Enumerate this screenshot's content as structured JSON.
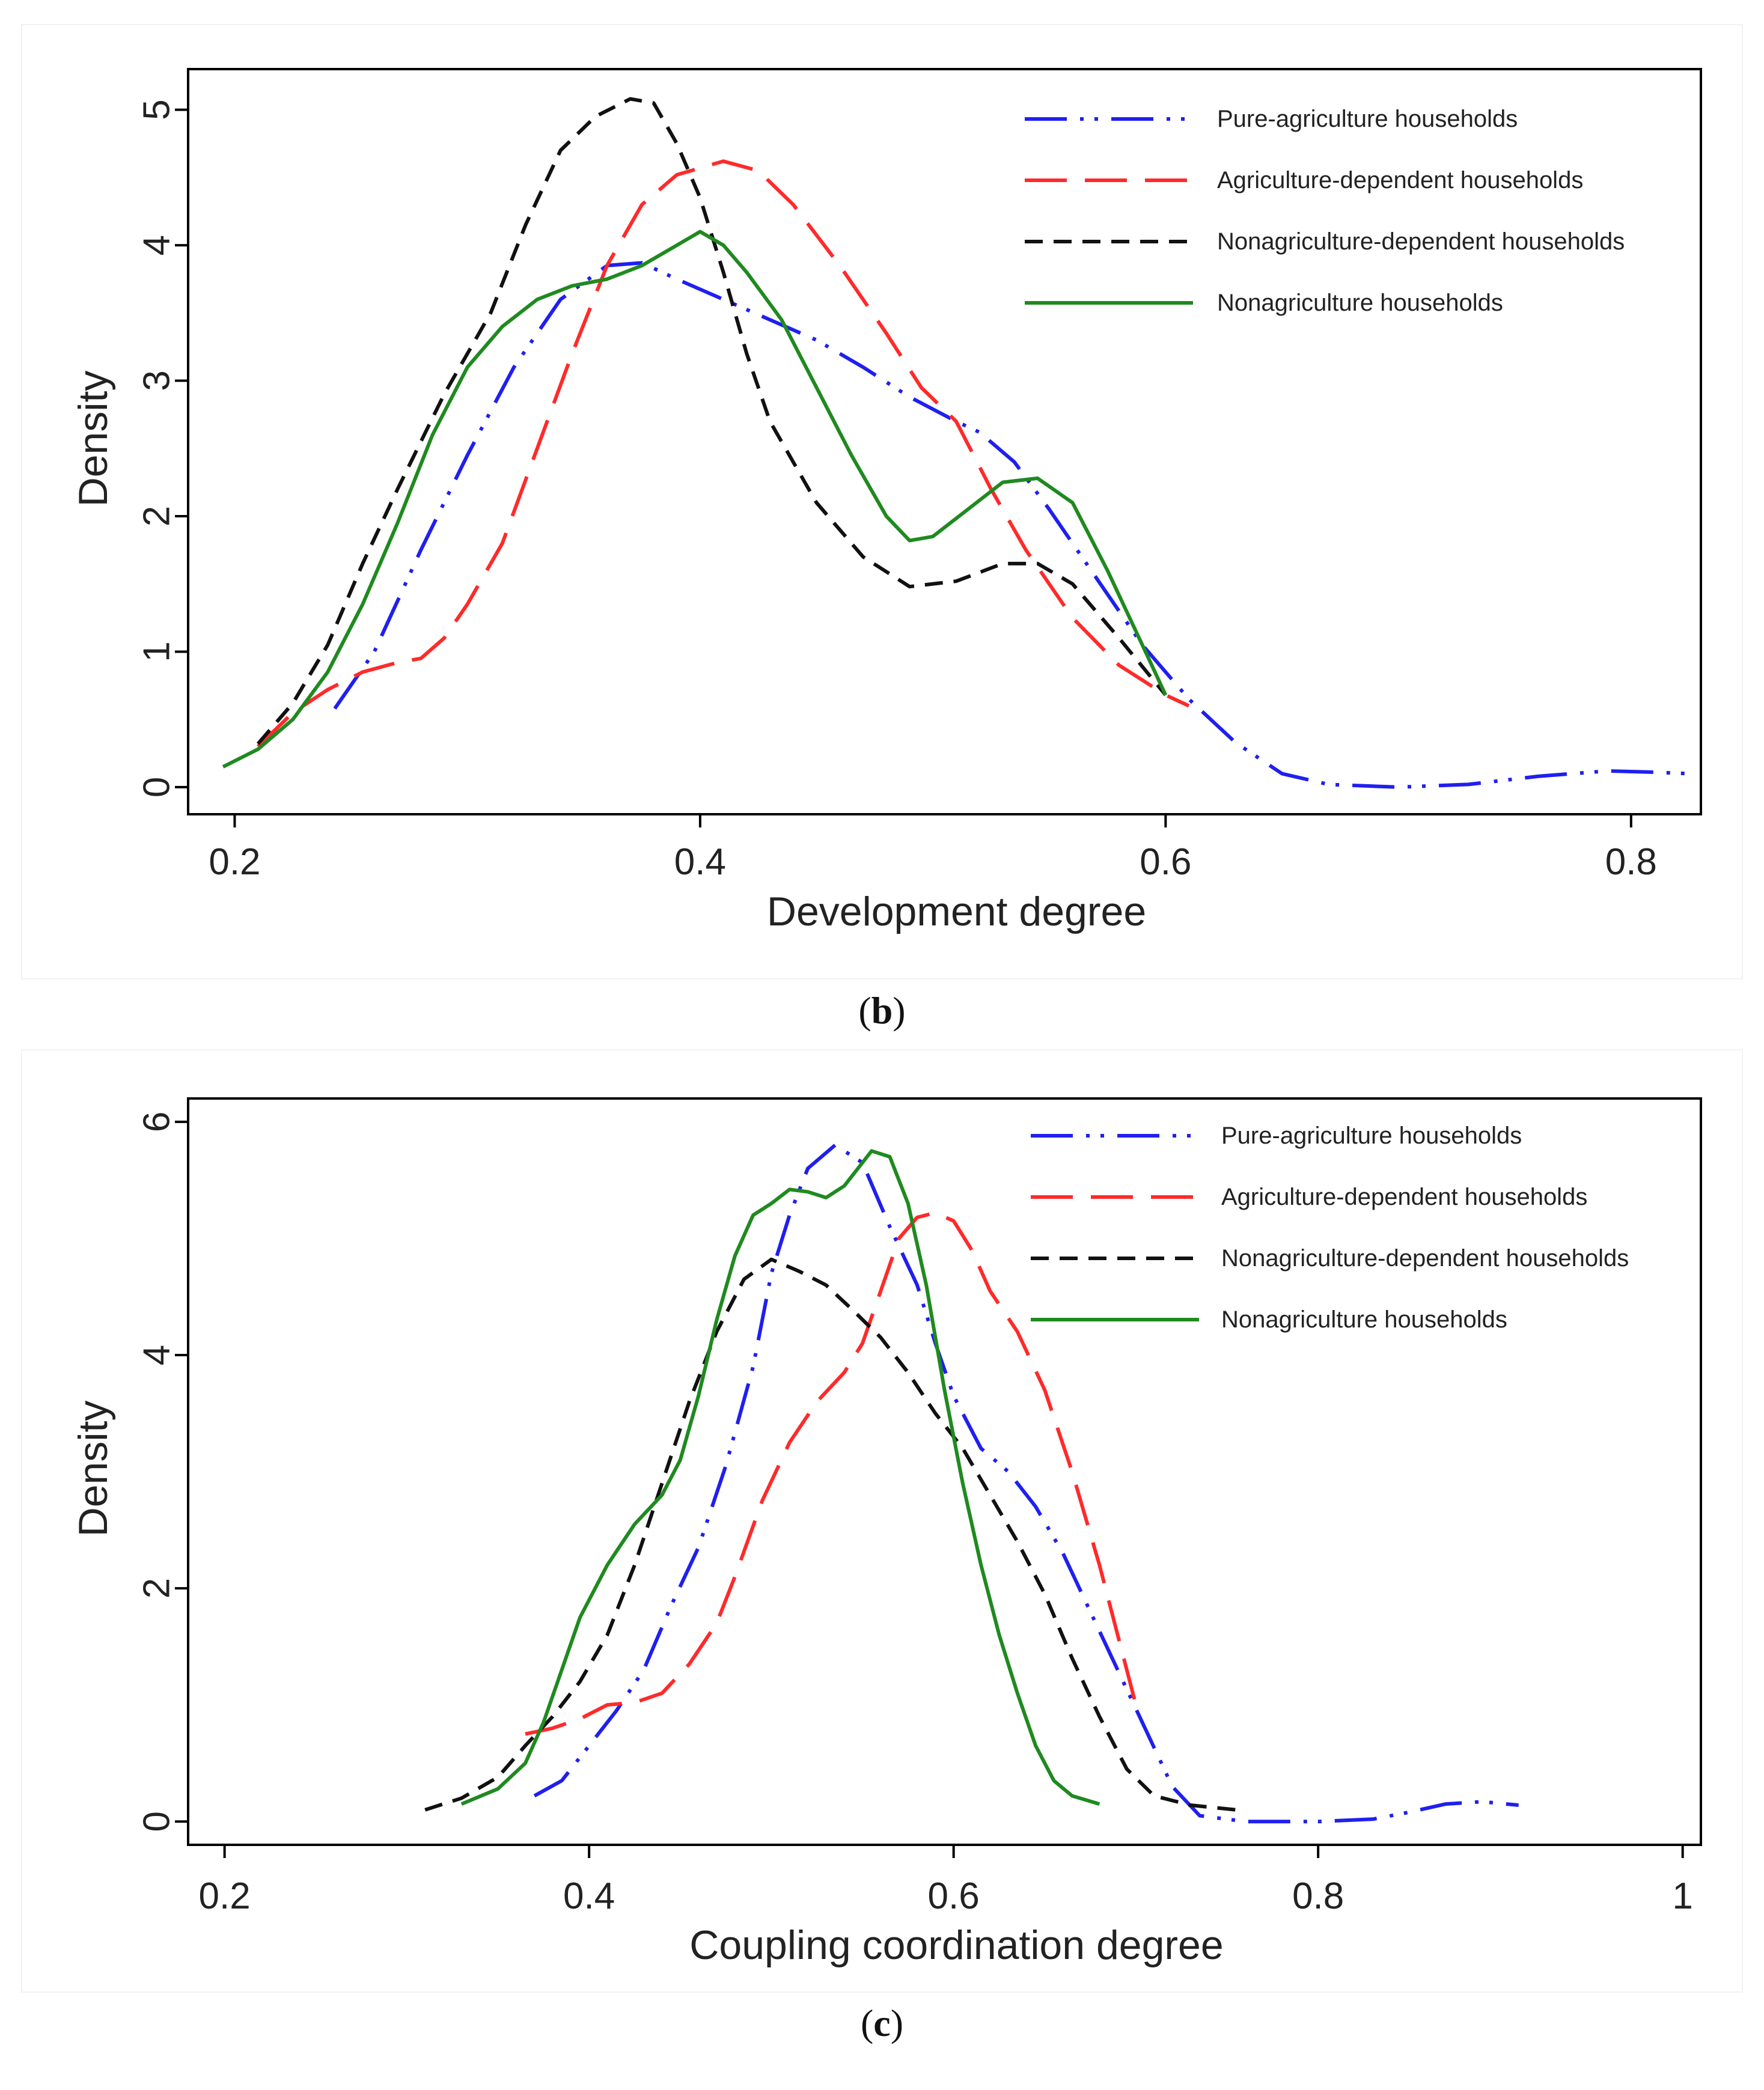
{
  "colors": {
    "pure": "#1f1ff0",
    "agridep": "#ff2a2a",
    "nonagridep": "#111111",
    "nonagri": "#1f8a1f"
  },
  "chart_data": [
    {
      "type": "line",
      "panel_label": "b",
      "xlabel": "Development degree",
      "ylabel": "Density",
      "xlim": [
        0.18,
        0.83
      ],
      "ylim": [
        -0.2,
        5.3
      ],
      "xticks": [
        0.2,
        0.4,
        0.6,
        0.8
      ],
      "xtick_labels": [
        "0.2",
        "0.4",
        "0.6",
        "0.8"
      ],
      "yticks": [
        0,
        1,
        2,
        3,
        4,
        5
      ],
      "ytick_labels": [
        "0",
        "1",
        "2",
        "3",
        "4",
        "5"
      ],
      "legend_position": "top-right",
      "series": [
        {
          "name": "Pure-agriculture households",
          "color_key": "pure",
          "dash": "longdash-dot-dot",
          "points": [
            [
              0.243,
              0.58
            ],
            [
              0.26,
              1.0
            ],
            [
              0.28,
              1.75
            ],
            [
              0.3,
              2.45
            ],
            [
              0.32,
              3.1
            ],
            [
              0.34,
              3.6
            ],
            [
              0.36,
              3.85
            ],
            [
              0.375,
              3.87
            ],
            [
              0.39,
              3.75
            ],
            [
              0.41,
              3.6
            ],
            [
              0.43,
              3.45
            ],
            [
              0.45,
              3.3
            ],
            [
              0.47,
              3.1
            ],
            [
              0.49,
              2.88
            ],
            [
              0.51,
              2.7
            ],
            [
              0.52,
              2.62
            ],
            [
              0.535,
              2.4
            ],
            [
              0.55,
              2.05
            ],
            [
              0.57,
              1.55
            ],
            [
              0.59,
              1.05
            ],
            [
              0.61,
              0.65
            ],
            [
              0.63,
              0.33
            ],
            [
              0.65,
              0.1
            ],
            [
              0.67,
              0.02
            ],
            [
              0.7,
              0.0
            ],
            [
              0.73,
              0.02
            ],
            [
              0.76,
              0.08
            ],
            [
              0.79,
              0.12
            ],
            [
              0.81,
              0.11
            ],
            [
              0.825,
              0.1
            ]
          ]
        },
        {
          "name": "Agriculture-dependent households",
          "color_key": "agridep",
          "dash": "longdash",
          "points": [
            [
              0.21,
              0.3
            ],
            [
              0.225,
              0.55
            ],
            [
              0.24,
              0.72
            ],
            [
              0.255,
              0.85
            ],
            [
              0.27,
              0.92
            ],
            [
              0.28,
              0.95
            ],
            [
              0.29,
              1.1
            ],
            [
              0.3,
              1.35
            ],
            [
              0.315,
              1.8
            ],
            [
              0.33,
              2.5
            ],
            [
              0.345,
              3.2
            ],
            [
              0.36,
              3.85
            ],
            [
              0.375,
              4.3
            ],
            [
              0.39,
              4.52
            ],
            [
              0.41,
              4.62
            ],
            [
              0.425,
              4.55
            ],
            [
              0.44,
              4.3
            ],
            [
              0.46,
              3.85
            ],
            [
              0.48,
              3.35
            ],
            [
              0.495,
              2.95
            ],
            [
              0.51,
              2.7
            ],
            [
              0.525,
              2.2
            ],
            [
              0.54,
              1.75
            ],
            [
              0.56,
              1.25
            ],
            [
              0.58,
              0.9
            ],
            [
              0.6,
              0.68
            ],
            [
              0.61,
              0.6
            ]
          ]
        },
        {
          "name": "Nonagriculture-dependent households",
          "color_key": "nonagridep",
          "dash": "dash",
          "points": [
            [
              0.21,
              0.32
            ],
            [
              0.225,
              0.62
            ],
            [
              0.24,
              1.05
            ],
            [
              0.255,
              1.65
            ],
            [
              0.27,
              2.2
            ],
            [
              0.29,
              2.9
            ],
            [
              0.31,
              3.5
            ],
            [
              0.325,
              4.15
            ],
            [
              0.34,
              4.7
            ],
            [
              0.355,
              4.95
            ],
            [
              0.37,
              5.08
            ],
            [
              0.38,
              5.05
            ],
            [
              0.39,
              4.75
            ],
            [
              0.4,
              4.35
            ],
            [
              0.41,
              3.8
            ],
            [
              0.42,
              3.2
            ],
            [
              0.43,
              2.7
            ],
            [
              0.45,
              2.1
            ],
            [
              0.47,
              1.7
            ],
            [
              0.49,
              1.48
            ],
            [
              0.51,
              1.52
            ],
            [
              0.53,
              1.65
            ],
            [
              0.545,
              1.65
            ],
            [
              0.56,
              1.5
            ],
            [
              0.58,
              1.1
            ],
            [
              0.6,
              0.68
            ]
          ]
        },
        {
          "name": "Nonagriculture households",
          "color_key": "nonagri",
          "dash": "solid",
          "points": [
            [
              0.195,
              0.15
            ],
            [
              0.21,
              0.28
            ],
            [
              0.225,
              0.5
            ],
            [
              0.24,
              0.85
            ],
            [
              0.255,
              1.35
            ],
            [
              0.27,
              1.95
            ],
            [
              0.285,
              2.6
            ],
            [
              0.3,
              3.1
            ],
            [
              0.315,
              3.4
            ],
            [
              0.33,
              3.6
            ],
            [
              0.345,
              3.7
            ],
            [
              0.36,
              3.75
            ],
            [
              0.375,
              3.85
            ],
            [
              0.39,
              4.0
            ],
            [
              0.4,
              4.1
            ],
            [
              0.41,
              4.0
            ],
            [
              0.42,
              3.8
            ],
            [
              0.435,
              3.45
            ],
            [
              0.45,
              2.95
            ],
            [
              0.465,
              2.45
            ],
            [
              0.48,
              2.0
            ],
            [
              0.49,
              1.82
            ],
            [
              0.5,
              1.85
            ],
            [
              0.515,
              2.05
            ],
            [
              0.53,
              2.25
            ],
            [
              0.545,
              2.28
            ],
            [
              0.56,
              2.1
            ],
            [
              0.575,
              1.6
            ],
            [
              0.59,
              1.05
            ],
            [
              0.6,
              0.68
            ]
          ]
        }
      ]
    },
    {
      "type": "line",
      "panel_label": "c",
      "xlabel": "Coupling coordination degree",
      "ylabel": "Density",
      "xlim": [
        0.18,
        1.01
      ],
      "ylim": [
        -0.2,
        6.2
      ],
      "xticks": [
        0.2,
        0.4,
        0.6,
        0.8,
        1.0
      ],
      "xtick_labels": [
        "0.2",
        "0.4",
        "0.6",
        "0.8",
        "1"
      ],
      "yticks": [
        0,
        2,
        4,
        6
      ],
      "ytick_labels": [
        "0",
        "2",
        "4",
        "6"
      ],
      "legend_position": "top-right",
      "series": [
        {
          "name": "Pure-agriculture households",
          "color_key": "pure",
          "dash": "longdash-dot-dot",
          "points": [
            [
              0.37,
              0.22
            ],
            [
              0.385,
              0.35
            ],
            [
              0.4,
              0.65
            ],
            [
              0.415,
              0.95
            ],
            [
              0.43,
              1.3
            ],
            [
              0.445,
              1.85
            ],
            [
              0.46,
              2.35
            ],
            [
              0.475,
              3.05
            ],
            [
              0.49,
              3.9
            ],
            [
              0.5,
              4.7
            ],
            [
              0.51,
              5.2
            ],
            [
              0.52,
              5.6
            ],
            [
              0.535,
              5.8
            ],
            [
              0.55,
              5.65
            ],
            [
              0.565,
              5.1
            ],
            [
              0.58,
              4.6
            ],
            [
              0.59,
              4.1
            ],
            [
              0.6,
              3.65
            ],
            [
              0.615,
              3.2
            ],
            [
              0.63,
              3.0
            ],
            [
              0.645,
              2.7
            ],
            [
              0.66,
              2.3
            ],
            [
              0.675,
              1.8
            ],
            [
              0.69,
              1.3
            ],
            [
              0.705,
              0.8
            ],
            [
              0.72,
              0.3
            ],
            [
              0.735,
              0.05
            ],
            [
              0.76,
              0.0
            ],
            [
              0.8,
              0.0
            ],
            [
              0.83,
              0.02
            ],
            [
              0.85,
              0.08
            ],
            [
              0.87,
              0.15
            ],
            [
              0.89,
              0.17
            ],
            [
              0.91,
              0.14
            ]
          ]
        },
        {
          "name": "Agriculture-dependent households",
          "color_key": "agridep",
          "dash": "longdash",
          "points": [
            [
              0.365,
              0.75
            ],
            [
              0.38,
              0.8
            ],
            [
              0.395,
              0.88
            ],
            [
              0.41,
              1.0
            ],
            [
              0.425,
              1.02
            ],
            [
              0.44,
              1.1
            ],
            [
              0.455,
              1.35
            ],
            [
              0.47,
              1.7
            ],
            [
              0.48,
              2.1
            ],
            [
              0.495,
              2.75
            ],
            [
              0.51,
              3.25
            ],
            [
              0.525,
              3.6
            ],
            [
              0.54,
              3.85
            ],
            [
              0.55,
              4.1
            ],
            [
              0.56,
              4.55
            ],
            [
              0.57,
              5.0
            ],
            [
              0.58,
              5.18
            ],
            [
              0.59,
              5.22
            ],
            [
              0.6,
              5.15
            ],
            [
              0.61,
              4.9
            ],
            [
              0.62,
              4.55
            ],
            [
              0.635,
              4.2
            ],
            [
              0.65,
              3.7
            ],
            [
              0.665,
              3.0
            ],
            [
              0.68,
              2.2
            ],
            [
              0.695,
              1.3
            ],
            [
              0.7,
              1.0
            ]
          ]
        },
        {
          "name": "Nonagriculture-dependent households",
          "color_key": "nonagridep",
          "dash": "dash",
          "points": [
            [
              0.31,
              0.1
            ],
            [
              0.33,
              0.2
            ],
            [
              0.35,
              0.38
            ],
            [
              0.365,
              0.65
            ],
            [
              0.38,
              0.9
            ],
            [
              0.395,
              1.2
            ],
            [
              0.41,
              1.6
            ],
            [
              0.425,
              2.2
            ],
            [
              0.44,
              2.9
            ],
            [
              0.455,
              3.6
            ],
            [
              0.47,
              4.2
            ],
            [
              0.485,
              4.65
            ],
            [
              0.5,
              4.82
            ],
            [
              0.515,
              4.72
            ],
            [
              0.53,
              4.6
            ],
            [
              0.545,
              4.38
            ],
            [
              0.56,
              4.15
            ],
            [
              0.575,
              3.85
            ],
            [
              0.59,
              3.5
            ],
            [
              0.605,
              3.2
            ],
            [
              0.62,
              2.8
            ],
            [
              0.635,
              2.4
            ],
            [
              0.65,
              1.95
            ],
            [
              0.665,
              1.4
            ],
            [
              0.68,
              0.9
            ],
            [
              0.695,
              0.45
            ],
            [
              0.71,
              0.22
            ],
            [
              0.73,
              0.14
            ],
            [
              0.755,
              0.1
            ]
          ]
        },
        {
          "name": "Nonagriculture households",
          "color_key": "nonagri",
          "dash": "solid",
          "points": [
            [
              0.33,
              0.15
            ],
            [
              0.35,
              0.28
            ],
            [
              0.365,
              0.5
            ],
            [
              0.375,
              0.85
            ],
            [
              0.385,
              1.3
            ],
            [
              0.395,
              1.75
            ],
            [
              0.41,
              2.2
            ],
            [
              0.425,
              2.55
            ],
            [
              0.44,
              2.8
            ],
            [
              0.45,
              3.1
            ],
            [
              0.46,
              3.65
            ],
            [
              0.47,
              4.3
            ],
            [
              0.48,
              4.85
            ],
            [
              0.49,
              5.2
            ],
            [
              0.5,
              5.3
            ],
            [
              0.51,
              5.42
            ],
            [
              0.52,
              5.4
            ],
            [
              0.53,
              5.35
            ],
            [
              0.54,
              5.45
            ],
            [
              0.555,
              5.75
            ],
            [
              0.565,
              5.7
            ],
            [
              0.575,
              5.3
            ],
            [
              0.585,
              4.6
            ],
            [
              0.595,
              3.7
            ],
            [
              0.605,
              2.9
            ],
            [
              0.615,
              2.2
            ],
            [
              0.625,
              1.6
            ],
            [
              0.635,
              1.1
            ],
            [
              0.645,
              0.65
            ],
            [
              0.655,
              0.35
            ],
            [
              0.665,
              0.22
            ],
            [
              0.68,
              0.15
            ]
          ]
        }
      ]
    }
  ]
}
